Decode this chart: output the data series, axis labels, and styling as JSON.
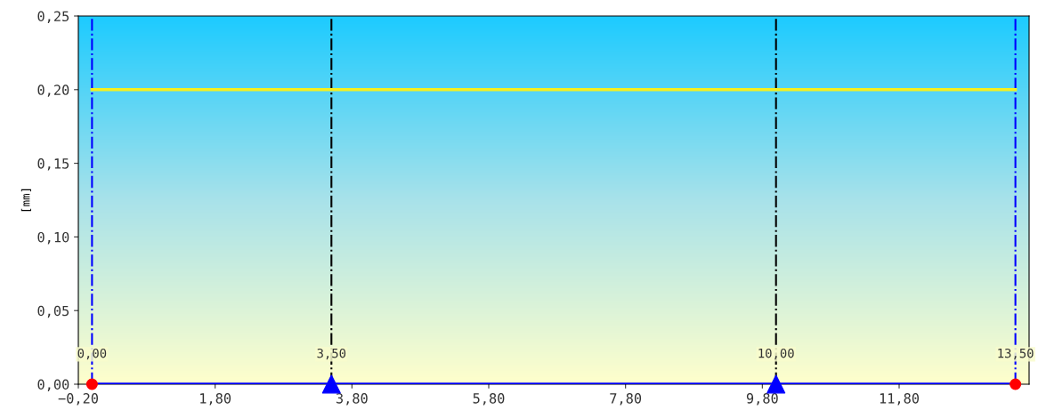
{
  "chart_data": {
    "type": "line",
    "ylabel": "[mm]",
    "xlim": [
      -0.2,
      13.7
    ],
    "ylim": [
      0,
      0.25
    ],
    "xticks": [
      {
        "value": -0.2,
        "label": "−0,20"
      },
      {
        "value": 1.8,
        "label": "1,80"
      },
      {
        "value": 3.8,
        "label": "3,80"
      },
      {
        "value": 5.8,
        "label": "5,80"
      },
      {
        "value": 7.8,
        "label": "7,80"
      },
      {
        "value": 9.8,
        "label": "9,80"
      },
      {
        "value": 11.8,
        "label": "11,80"
      }
    ],
    "yticks": [
      {
        "value": 0,
        "label": "0,00"
      },
      {
        "value": 0.05,
        "label": "0,05"
      },
      {
        "value": 0.1,
        "label": "0,10"
      },
      {
        "value": 0.15,
        "label": "0,15"
      },
      {
        "value": 0.2,
        "label": "0,20"
      },
      {
        "value": 0.25,
        "label": "0,25"
      }
    ],
    "series": [
      {
        "x": [
          0,
          13.5
        ],
        "values": [
          0.2,
          0.2
        ],
        "color": "#f5f01e",
        "marker": "none"
      },
      {
        "x": [
          0,
          13.5
        ],
        "values": [
          0,
          0
        ],
        "color": "#0000ff",
        "marker": "none"
      },
      {
        "type": "scatter",
        "x": [
          0,
          13.5
        ],
        "values": [
          0,
          0
        ],
        "color": "#ff0000",
        "marker": "circle"
      },
      {
        "type": "scatter",
        "x": [
          3.5,
          10.0
        ],
        "values": [
          0,
          0
        ],
        "color": "#0000ff",
        "marker": "triangle"
      }
    ],
    "ref_lines": [
      {
        "axis": "x",
        "value": 0,
        "label": "0,00",
        "color": "#0000ff",
        "line_style": "dashdot"
      },
      {
        "axis": "x",
        "value": 3.5,
        "label": "3,50",
        "color": "#000000",
        "line_style": "dashdot"
      },
      {
        "axis": "x",
        "value": 10.0,
        "label": "10,00",
        "color": "#000000",
        "line_style": "dashdot"
      },
      {
        "axis": "x",
        "value": 13.5,
        "label": "13,50",
        "color": "#0000ff",
        "line_style": "dashdot"
      }
    ],
    "grid": false,
    "legend": false
  }
}
